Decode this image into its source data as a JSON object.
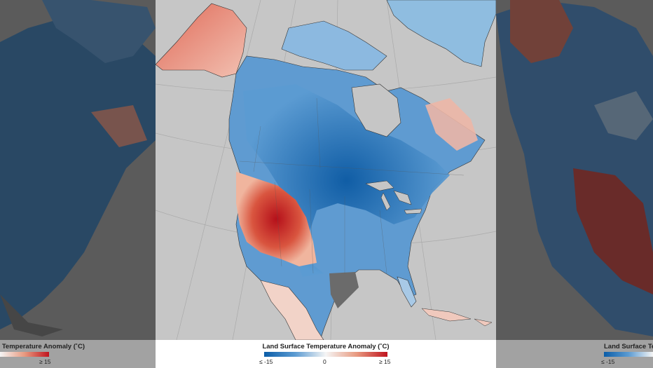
{
  "legend": {
    "title": "Land Surface Temperature Anomaly (˚C)",
    "min_label": "≤ -15",
    "mid_label": "0",
    "max_label": "≥ 15",
    "colors": {
      "cold": "#0b5da8",
      "neutral": "#f5f5f5",
      "warm": "#c0141e"
    }
  },
  "map": {
    "region": "North America",
    "ocean_color": "#c6c6c6",
    "no_data_color": "#6b6b6b"
  }
}
